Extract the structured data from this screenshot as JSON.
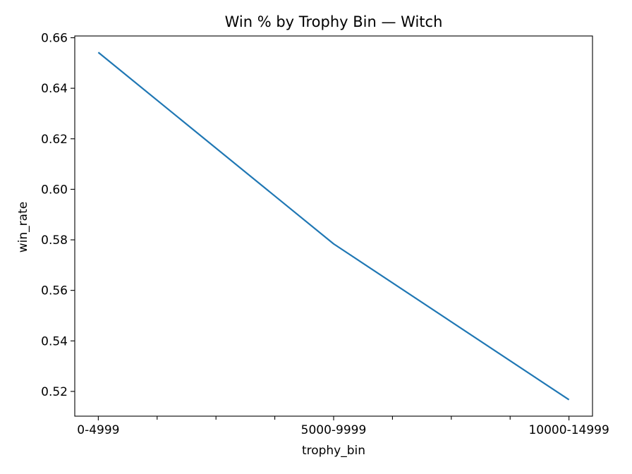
{
  "chart_data": {
    "type": "line",
    "title": "Win % by Trophy Bin — Witch",
    "xlabel": "trophy_bin",
    "ylabel": "win_rate",
    "categories": [
      "0-4999",
      "5000-9999",
      "10000-14999"
    ],
    "series": [
      {
        "values": [
          0.6542,
          0.5784,
          0.5167
        ],
        "color": "#1f77b4"
      }
    ],
    "ylim": [
      0.5102,
      0.6607
    ],
    "yticks": [
      0.52,
      0.54,
      0.56,
      0.58,
      0.6,
      0.62,
      0.64,
      0.66
    ],
    "ytick_labels": [
      "0.52",
      "0.54",
      "0.56",
      "0.58",
      "0.60",
      "0.62",
      "0.64",
      "0.66"
    ],
    "grid": false,
    "legend": false
  }
}
